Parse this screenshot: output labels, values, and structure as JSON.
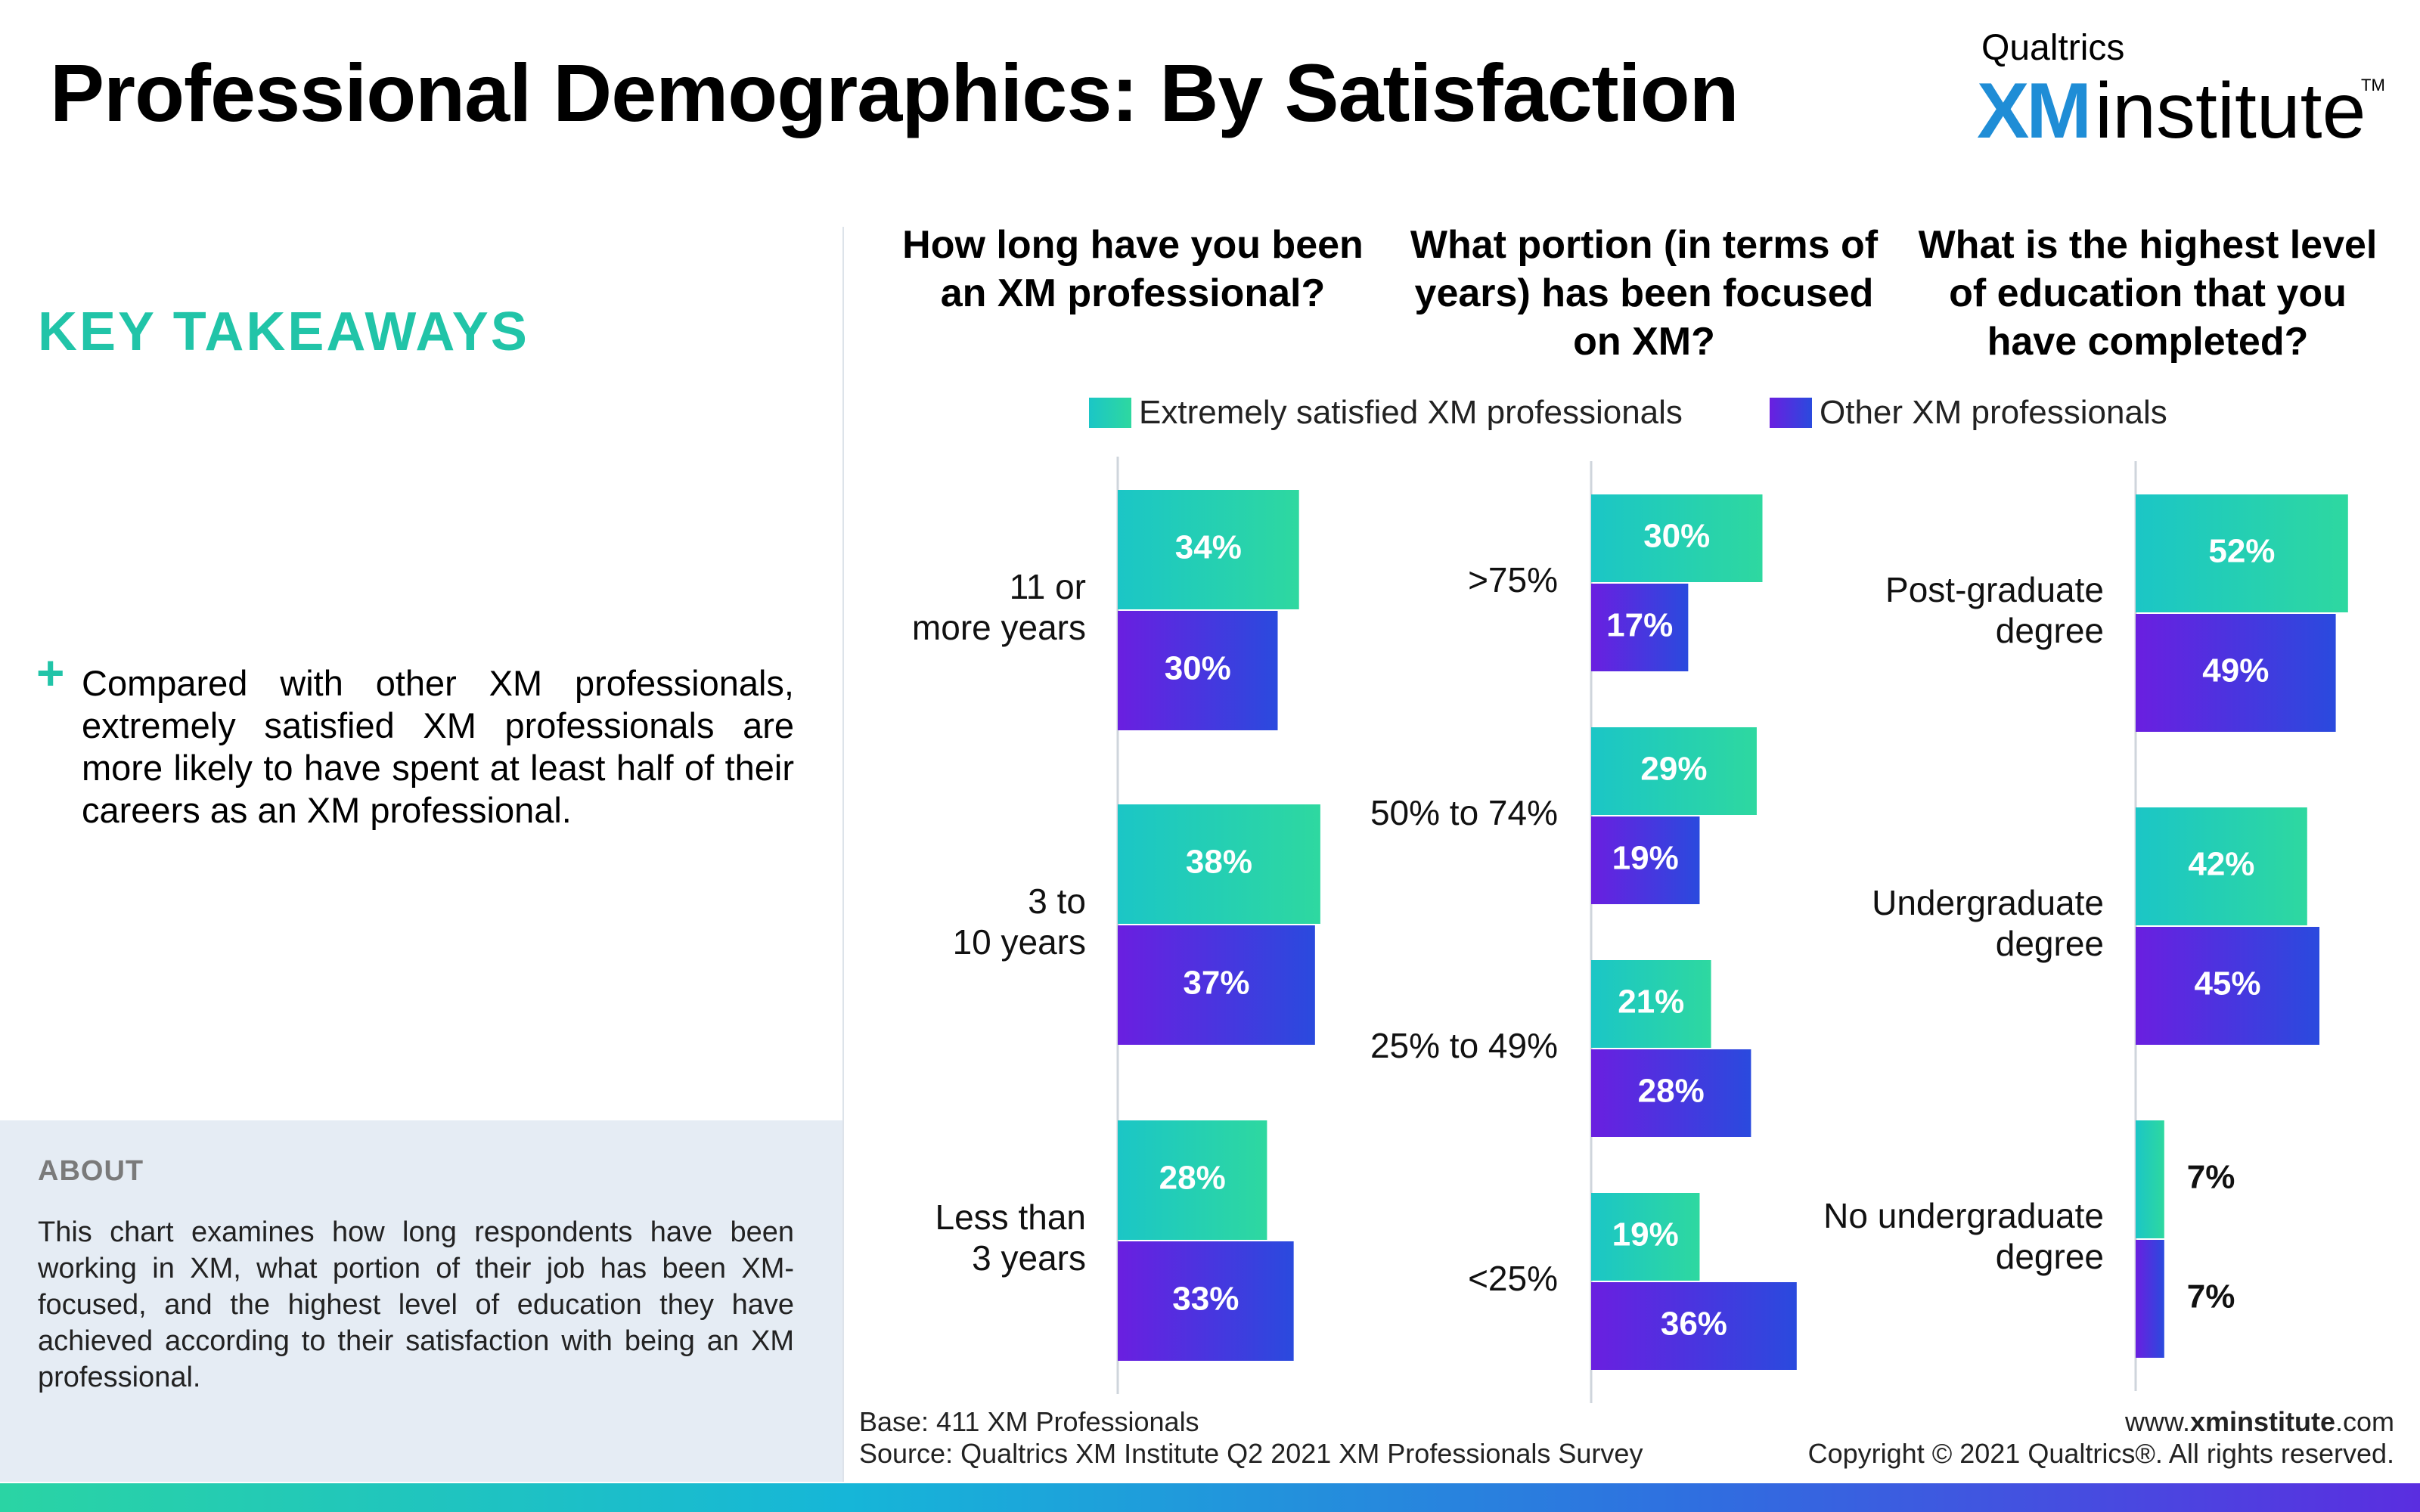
{
  "header": {
    "title": "Professional Demographics: By Satisfaction",
    "logo_top": "Qualtrics",
    "logo_xm": "XM",
    "logo_institute": "institute",
    "logo_tm": "TM"
  },
  "sidebar": {
    "takeaways_heading": "KEY TAKEAWAYS",
    "takeaway_bullet": "+",
    "takeaway_text": "Compared with other XM professionals, extremely satisfied XM professionals are more likely to have spent at least half of their careers as an XM professional.",
    "about_heading": "ABOUT",
    "about_text": "This chart examines how long respondents have been working in XM, what portion of their job has been XM-focused, and the highest level of education they have achieved according to their satisfaction with being an XM professional."
  },
  "legend": {
    "series_a": "Extremely satisfied XM professionals",
    "series_b": "Other XM professionals"
  },
  "colors": {
    "series_a_start": "#1bc6c6",
    "series_a_end": "#2ed8a0",
    "series_b_start": "#6a1fe0",
    "series_b_end": "#2a4ade",
    "accent": "#21c4a8",
    "logo_blue": "#1f8dd6"
  },
  "chart_data": [
    {
      "type": "bar",
      "orientation": "horizontal",
      "title": "How long have you been an XM professional?",
      "categories": [
        "11 or more years",
        "3 to 10 years",
        "Less than 3 years"
      ],
      "series": [
        {
          "name": "Extremely satisfied XM professionals",
          "values": [
            34,
            38,
            28
          ],
          "labels": [
            "34%",
            "38%",
            "28%"
          ]
        },
        {
          "name": "Other XM professionals",
          "values": [
            30,
            37,
            33
          ],
          "labels": [
            "30%",
            "37%",
            "33%"
          ]
        }
      ],
      "unit": "%",
      "grid": false,
      "legend": "top"
    },
    {
      "type": "bar",
      "orientation": "horizontal",
      "title": "What portion (in terms of years) has been focused on XM?",
      "categories": [
        ">75%",
        "50% to 74%",
        "25% to 49%",
        "<25%"
      ],
      "series": [
        {
          "name": "Extremely satisfied XM professionals",
          "values": [
            30,
            29,
            21,
            19
          ],
          "labels": [
            "30%",
            "29%",
            "21%",
            "19%"
          ]
        },
        {
          "name": "Other XM professionals",
          "values": [
            17,
            19,
            28,
            36
          ],
          "labels": [
            "17%",
            "19%",
            "28%",
            "36%"
          ]
        }
      ],
      "unit": "%",
      "grid": false,
      "legend": "top"
    },
    {
      "type": "bar",
      "orientation": "horizontal",
      "title": "What is the highest level of education that you have completed?",
      "categories": [
        "Post-graduate degree",
        "Undergraduate degree",
        "No undergraduate degree"
      ],
      "series": [
        {
          "name": "Extremely satisfied XM professionals",
          "values": [
            52,
            42,
            7
          ],
          "labels": [
            "52%",
            "42%",
            "7%"
          ]
        },
        {
          "name": "Other XM professionals",
          "values": [
            49,
            45,
            7
          ],
          "labels": [
            "49%",
            "45%",
            "7%"
          ]
        }
      ],
      "unit": "%",
      "grid": false,
      "legend": "top"
    }
  ],
  "footer": {
    "base": "Base: 411 XM Professionals",
    "source": "Source: Qualtrics XM Institute Q2 2021 XM Professionals Survey",
    "url_prefix": "www.",
    "url_bold": "xminstitute",
    "url_suffix": ".com",
    "copyright": "Copyright © 2021 Qualtrics®. All rights reserved."
  }
}
